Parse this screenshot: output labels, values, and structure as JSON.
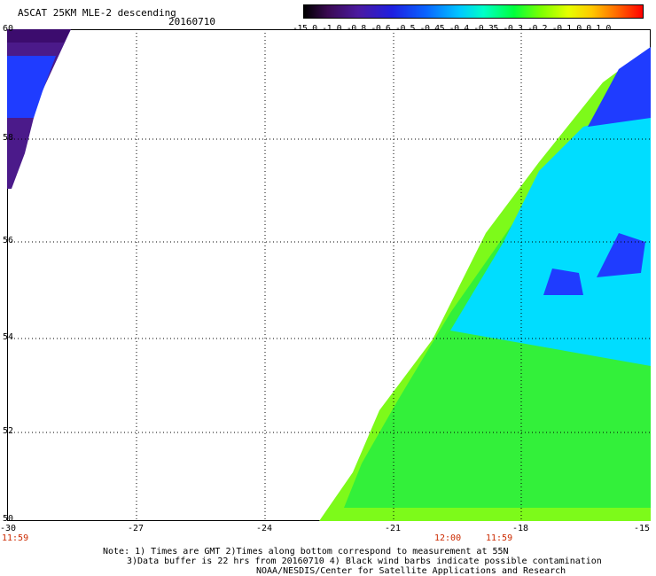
{
  "title": "ASCAT 25KM MLE-2 descending",
  "date": "20160710",
  "colorbar": {
    "tick_text": "-15.0 -1.0  -0.8  -0.6  -0.5  -0.45 -0.4  -0.35 -0.3  -0.2  -0.1  0.0  1.0",
    "gradient_colors": [
      "#000000",
      "#3a0a52",
      "#4b1aa0",
      "#1f1fe0",
      "#0a64ff",
      "#00c8ff",
      "#00ffc8",
      "#00ff3c",
      "#7dff00",
      "#e6ff00",
      "#ffc800",
      "#ff6e00",
      "#ff0000"
    ]
  },
  "map": {
    "lon_range": [
      -30,
      -15
    ],
    "lat_range": [
      50,
      60
    ],
    "lon_ticks": [
      "-30",
      "-27",
      "-24",
      "-21",
      "-18",
      "-15"
    ],
    "lat_ticks": [
      "60",
      "58",
      "56",
      "54",
      "52",
      "50"
    ],
    "swath_colors": {
      "dark": "#4b1a8a",
      "blue": "#1f3cff",
      "cyan": "#00ddff",
      "green": "#33f03a",
      "lime": "#7dfa1a"
    }
  },
  "times": {
    "left": "11:59",
    "mid1": "12:00",
    "mid2": "11:59"
  },
  "notes": {
    "line1": "Note: 1) Times are GMT 2)Times along bottom correspond to measurement at 55N",
    "line2": "3)Data buffer is 22 hrs from 20160710 4) Black wind barbs indicate possible contamination",
    "line3": "NOAA/NESDIS/Center for Satellite Applications and Research"
  }
}
